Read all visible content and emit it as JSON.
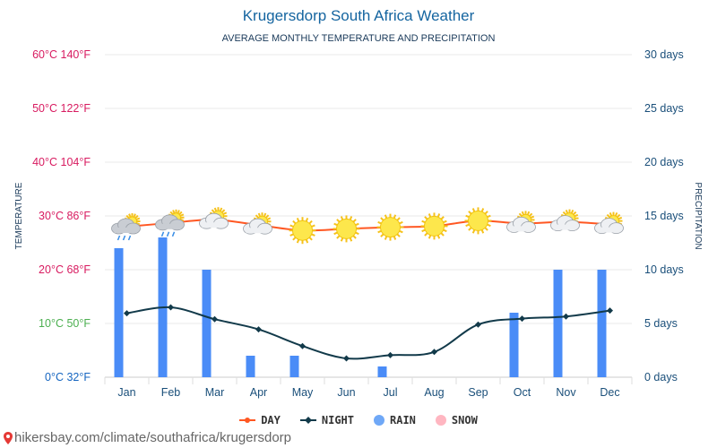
{
  "chart_data": {
    "type": "bar+line",
    "title": "Krugersdorp South Africa Weather",
    "subtitle": "AVERAGE MONTHLY TEMPERATURE AND PRECIPITATION",
    "ylabel_left": "TEMPERATURE",
    "ylabel_right": "PRECIPITATION",
    "categories": [
      "Jan",
      "Feb",
      "Mar",
      "Apr",
      "May",
      "Jun",
      "Jul",
      "Aug",
      "Sep",
      "Oct",
      "Nov",
      "Dec"
    ],
    "temp_ticks_c": [
      0,
      10,
      20,
      30,
      40,
      50,
      60
    ],
    "temp_tick_labels": [
      "0°C 32°F",
      "10°C 50°F",
      "20°C 68°F",
      "30°C 86°F",
      "40°C 104°F",
      "50°C 122°F",
      "60°C 140°F"
    ],
    "temp_tick_colors": [
      "#1565c0",
      "#4caf50",
      "#d81b60",
      "#d81b60",
      "#d81b60",
      "#d81b60",
      "#d81b60"
    ],
    "precip_ticks": [
      0,
      5,
      10,
      15,
      20,
      25,
      30
    ],
    "precip_tick_labels": [
      "0 days",
      "5 days",
      "10 days",
      "15 days",
      "20 days",
      "25 days",
      "30 days"
    ],
    "temp_range": [
      0,
      60
    ],
    "precip_range": [
      0,
      30
    ],
    "series": [
      {
        "name": "DAY",
        "unit": "°C",
        "color": "#ff5722",
        "values": [
          28,
          28.7,
          29.3,
          28.3,
          27.3,
          27.6,
          27.9,
          28.1,
          29.1,
          28.6,
          28.9,
          28.4
        ]
      },
      {
        "name": "NIGHT",
        "unit": "°C",
        "color": "#123a4a",
        "values": [
          11.9,
          13,
          10.8,
          8.9,
          5.8,
          3.5,
          4.1,
          4.7,
          9.8,
          10.9,
          11.3,
          12.4
        ]
      },
      {
        "name": "RAIN",
        "unit": "days",
        "color": "#4a8cf7",
        "values": [
          12,
          13,
          10,
          2,
          2,
          0,
          1,
          0,
          0,
          6,
          10,
          10
        ]
      },
      {
        "name": "SNOW",
        "unit": "days",
        "color": "#ffb6c1",
        "values": [
          0,
          0,
          0,
          0,
          0,
          0,
          0,
          0,
          0,
          0,
          0,
          0
        ]
      }
    ],
    "weather_icons": [
      "rain-cloud",
      "rain-cloud",
      "partly-sunny",
      "partly-sunny",
      "sunny",
      "sunny",
      "sunny",
      "sunny",
      "sunny",
      "partly-sunny",
      "partly-sunny",
      "partly-sunny"
    ],
    "grid": true
  },
  "legend": [
    {
      "label": "DAY",
      "color": "#ff5722",
      "kind": "line"
    },
    {
      "label": "NIGHT",
      "color": "#123a4a",
      "kind": "line"
    },
    {
      "label": "RAIN",
      "color": "#6fa8f7",
      "kind": "dot"
    },
    {
      "label": "SNOW",
      "color": "#ffb6c1",
      "kind": "dot"
    }
  ],
  "footer": {
    "text": "hikersbay.com/climate/southafrica/krugersdorp"
  },
  "colors": {
    "title": "#1565a0",
    "axis_right": "#1a4f7a",
    "month": "#1a4f7a"
  }
}
